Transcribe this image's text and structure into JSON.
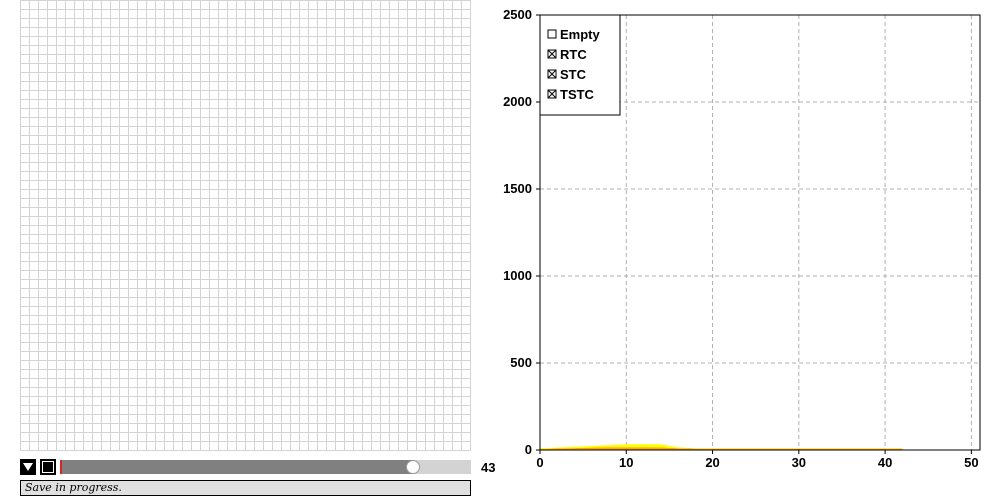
{
  "grid_panel": {
    "cells_x": 50,
    "cells_y": 50,
    "line_color": "#d3d3d3"
  },
  "controls": {
    "dropdown_icon": "triangle-down-icon",
    "stop_icon": "stop-icon",
    "slider_value": 43,
    "slider_max": 50,
    "slider_fill_color": "#808080",
    "slider_track_color": "#d3d3d3",
    "marker_color": "#d62728",
    "frame_counter": "43"
  },
  "status_bar": {
    "text": "Save in progress."
  },
  "legend": {
    "items": [
      {
        "label": "Empty",
        "checked": false
      },
      {
        "label": "RTC",
        "checked": true
      },
      {
        "label": "STC",
        "checked": true
      },
      {
        "label": "TSTC",
        "checked": true
      }
    ]
  },
  "chart_data": {
    "type": "area",
    "title": "",
    "xlabel": "",
    "ylabel": "",
    "xlim": [
      0,
      51
    ],
    "ylim": [
      0,
      2500
    ],
    "x_ticks": [
      "0",
      "10",
      "20",
      "30",
      "40",
      "50"
    ],
    "y_ticks": [
      "0",
      "500",
      "1000",
      "1500",
      "2000",
      "2500"
    ],
    "grid": true,
    "legend_position": "top-left",
    "x": [
      0,
      2,
      4,
      6,
      8,
      10,
      12,
      14,
      16,
      18,
      20,
      25,
      30,
      35,
      40,
      42
    ],
    "series": [
      {
        "name": "RTC",
        "color": "#d62728",
        "values": [
          2,
          3,
          3,
          4,
          4,
          4,
          4,
          4,
          4,
          4,
          4,
          4,
          4,
          4,
          4,
          4
        ]
      },
      {
        "name": "STC",
        "color": "#ffa500",
        "values": [
          3,
          6,
          8,
          10,
          12,
          12,
          12,
          11,
          6,
          4,
          4,
          4,
          4,
          4,
          4,
          4
        ]
      },
      {
        "name": "TSTC",
        "color": "#ffff00",
        "values": [
          5,
          5,
          8,
          10,
          12,
          16,
          18,
          18,
          5,
          2,
          2,
          2,
          2,
          2,
          2,
          2
        ]
      }
    ]
  }
}
